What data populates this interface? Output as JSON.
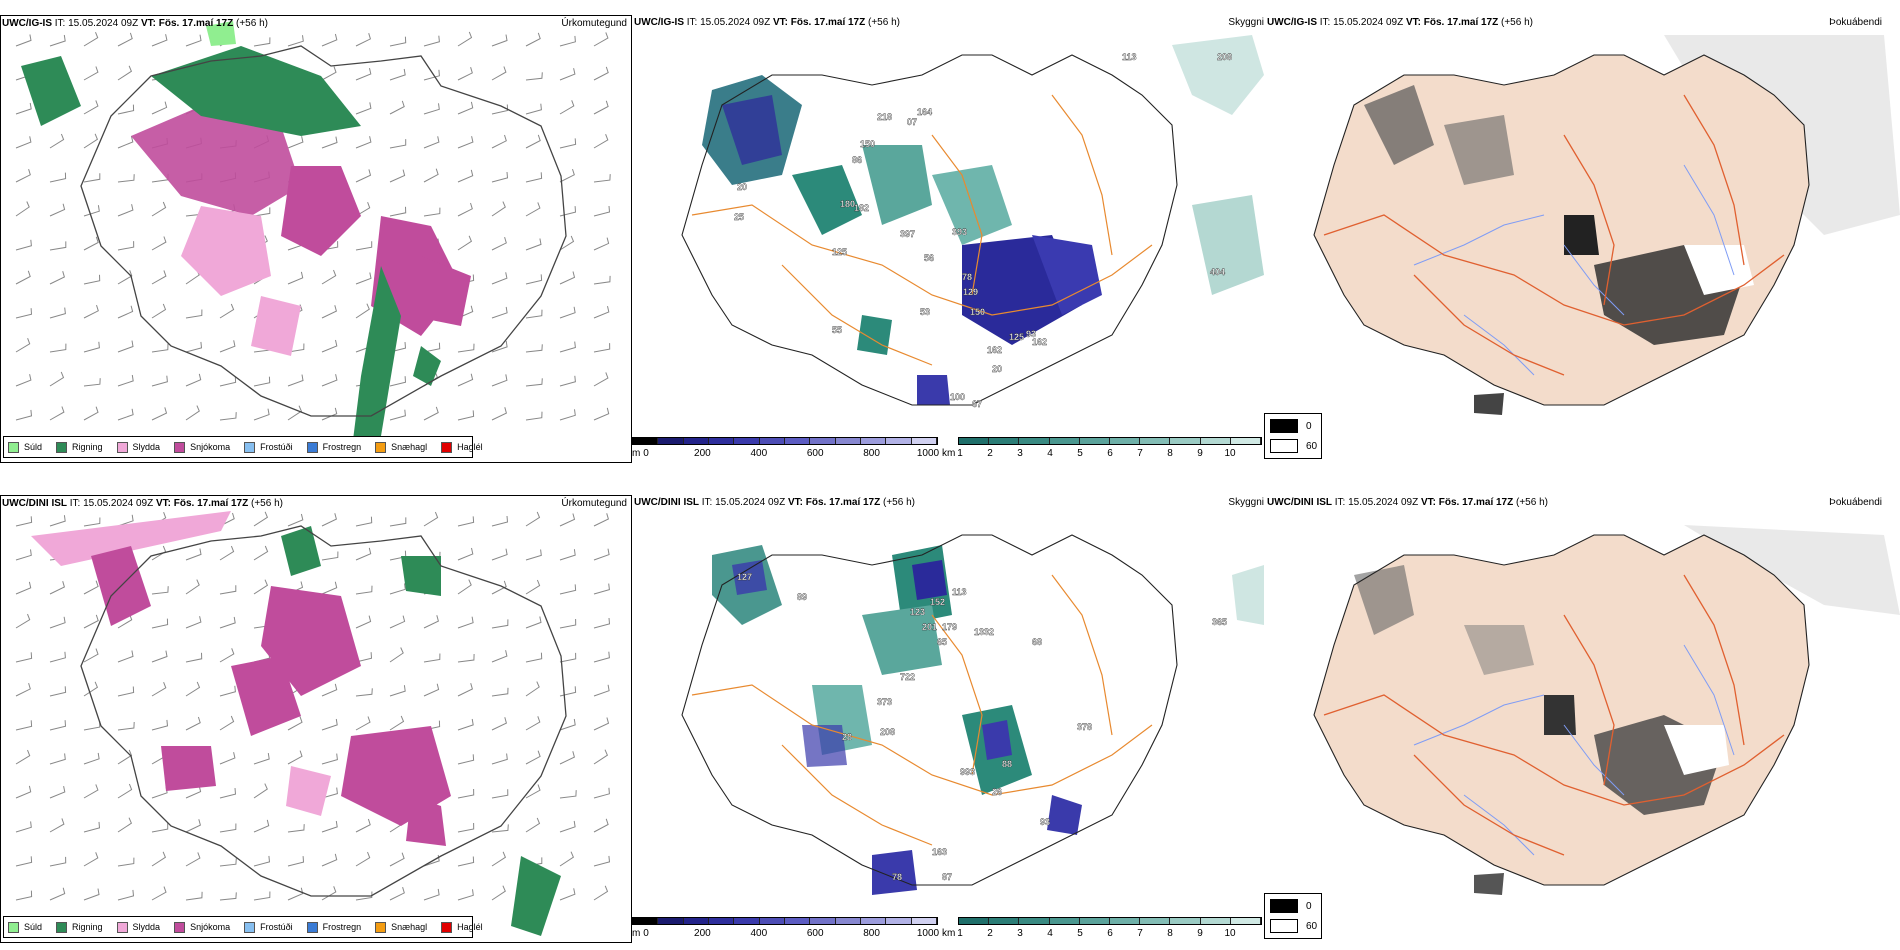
{
  "colors": {
    "sudd": "#90ee90",
    "rigning": "#2e8b57",
    "slydda": "#f0a8d8",
    "snjokoma": "#c04c9c",
    "frostudi": "#87bff0",
    "frostregn": "#3a7bd5",
    "snaehagl": "#f39c12",
    "haglel": "#e00000",
    "land_fog": "#f3dccb",
    "roads": "#e06030",
    "roads_cloud": "#e88a30",
    "rivers": "#7f9cf5",
    "cloud_high": "#2a2a9a",
    "cloud_low": "#2c8a7a"
  },
  "rows": [
    {
      "model": "UWC/IG-IS",
      "it_label": "IT:",
      "it_value": "15.05.2024 09Z",
      "vt_label": "VT:",
      "vt_value": "Fös. 17.maí 17Z",
      "lead": "(+56 h)",
      "cloud_labels": [
        "208",
        "113",
        "164",
        "07",
        "218",
        "150",
        "86",
        "20",
        "25",
        "180",
        "182",
        "397",
        "393",
        "56",
        "78",
        "129",
        "150",
        "93",
        "125",
        "162",
        "162",
        "404",
        "53",
        "20",
        "100",
        "67",
        "55",
        "125"
      ]
    },
    {
      "model": "UWC/DINI ISL",
      "it_label": "IT:",
      "it_value": "15.05.2024 09Z",
      "vt_label": "VT:",
      "vt_value": "Fös. 17.maí 17Z",
      "lead": "(+56 h)",
      "cloud_labels": [
        "365",
        "113",
        "127",
        "89",
        "152",
        "123",
        "179",
        "1332",
        "65",
        "201",
        "722",
        "373",
        "208",
        "28",
        "993",
        "88",
        "26",
        "93",
        "378",
        "68",
        "163",
        "78",
        "87"
      ]
    }
  ],
  "panel_titles": {
    "precip": "Úrkomutegund",
    "cloud": "Skyggni",
    "fog": "Þokuábendi"
  },
  "precip_legend": [
    {
      "label": "Súld",
      "color_key": "sudd"
    },
    {
      "label": "Rigning",
      "color_key": "rigning"
    },
    {
      "label": "Slydda",
      "color_key": "slydda"
    },
    {
      "label": "Snjókoma",
      "color_key": "snjokoma"
    },
    {
      "label": "Frostúði",
      "color_key": "frostudi"
    },
    {
      "label": "Frostregn",
      "color_key": "frostregn"
    },
    {
      "label": "Snæhagl",
      "color_key": "snaehagl"
    },
    {
      "label": "Haglél",
      "color_key": "haglel"
    }
  ],
  "cloud_base_scale": {
    "unit": "m",
    "ticks": [
      "0",
      "200",
      "400",
      "600",
      "800",
      "1000"
    ],
    "colors": [
      "#000000",
      "#1a1a6e",
      "#23238a",
      "#2e2e9c",
      "#3a3aab",
      "#4d4db5",
      "#5c5cc2",
      "#7272c8",
      "#8787d0",
      "#9c9cdc",
      "#b2b2e6",
      "#d0d0f0"
    ]
  },
  "visibility_scale": {
    "unit": "km",
    "ticks": [
      "1",
      "2",
      "3",
      "4",
      "5",
      "6",
      "7",
      "8",
      "9",
      "10"
    ],
    "colors": [
      "#1f6f6a",
      "#2b7d76",
      "#398a82",
      "#4a978f",
      "#5ba39b",
      "#6eb0a8",
      "#83bdb5",
      "#9acbc3",
      "#b3d9d2",
      "#d0e9e4"
    ]
  },
  "fog_legend": [
    {
      "label": "0",
      "color": "#000000"
    },
    {
      "label": "60",
      "color": "#ffffff"
    }
  ]
}
